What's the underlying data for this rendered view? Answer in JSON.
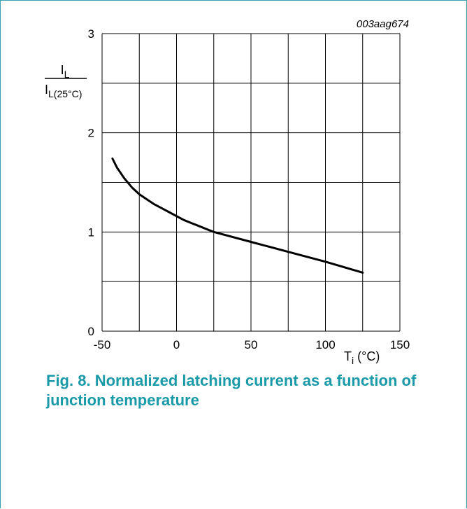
{
  "chart_data": {
    "type": "line",
    "figure_id": "003aag674",
    "ylabel_numerator": "I",
    "ylabel_numerator_sub": "L",
    "ylabel_denominator": "I",
    "ylabel_denominator_sub": "L(25°C)",
    "xlabel_main": "T",
    "xlabel_sub": "j",
    "xlabel_unit": " (°C)",
    "xlim": [
      -50,
      150
    ],
    "ylim": [
      0,
      3
    ],
    "xticks": [
      -50,
      0,
      50,
      100,
      150
    ],
    "xtick_labels": [
      "-50",
      "0",
      "50",
      "100",
      "150"
    ],
    "yticks": [
      0,
      1,
      2,
      3
    ],
    "ytick_labels": [
      "0",
      "1",
      "2",
      "3"
    ],
    "x_grid": [
      -50,
      -25,
      0,
      25,
      50,
      75,
      100,
      125,
      150
    ],
    "y_grid": [
      0,
      0.5,
      1,
      1.5,
      2,
      2.5,
      3
    ],
    "grid": true,
    "series": [
      {
        "color": "#000000",
        "x": [
          -43,
          -40,
          -35,
          -30,
          -25,
          -20,
          -15,
          -10,
          -5,
          0,
          5,
          10,
          15,
          20,
          25,
          50,
          75,
          100,
          125
        ],
        "y": [
          1.74,
          1.65,
          1.54,
          1.45,
          1.38,
          1.33,
          1.28,
          1.24,
          1.2,
          1.16,
          1.12,
          1.09,
          1.06,
          1.03,
          1.0,
          0.9,
          0.8,
          0.7,
          0.59
        ]
      }
    ]
  },
  "caption": {
    "label": "Fig. 8.",
    "text": "Normalized latching current as a function of junction temperature"
  },
  "colors": {
    "caption": "#1a9aa8",
    "frame": "#3a9fb0"
  }
}
